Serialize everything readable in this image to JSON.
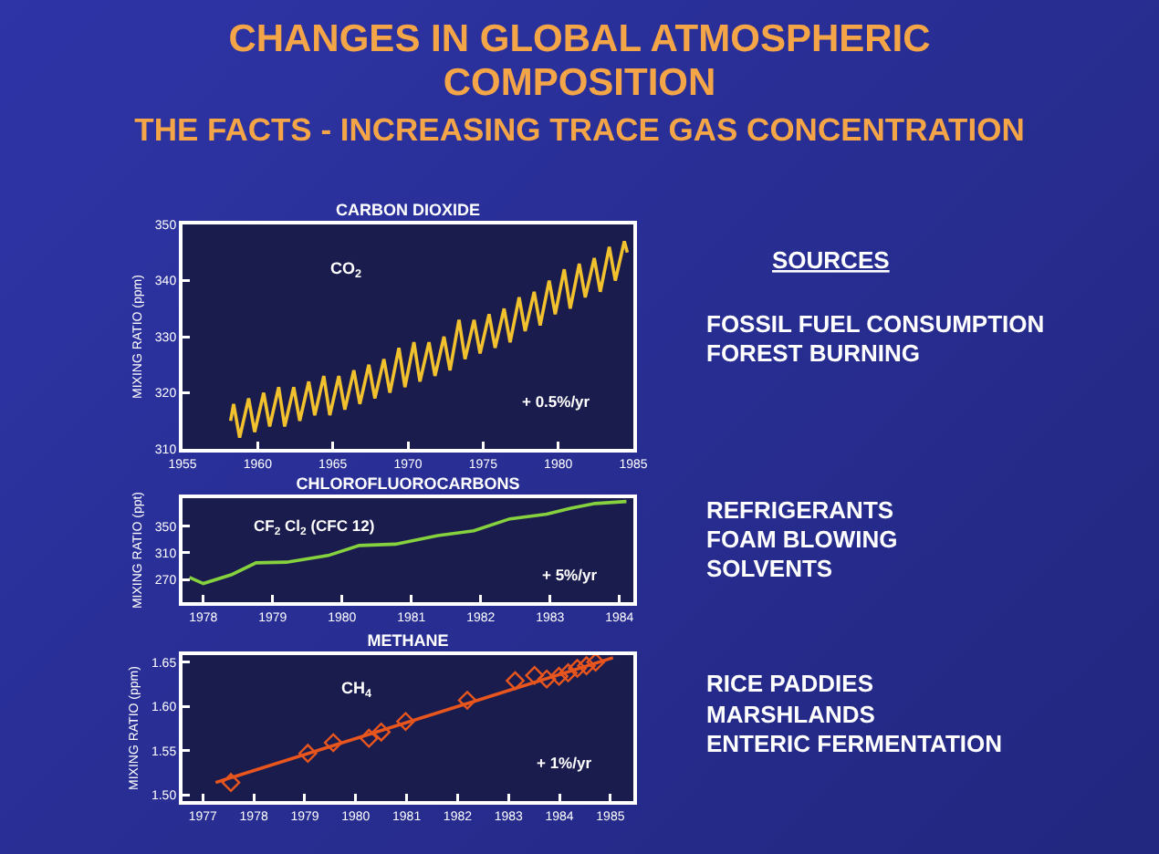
{
  "chart_data": [
    {
      "type": "other",
      "title": "CHANGES IN GLOBAL ATMOSPHERIC COMPOSITION",
      "subtitle": "THE FACTS - INCREASING TRACE GAS CONCENTRATION"
    },
    {
      "type": "line",
      "title": "CARBON DIOXIDE",
      "ylabel": "MIXING RATIO (ppm)",
      "xlim": [
        1955,
        1985
      ],
      "xticks": [
        1955,
        1960,
        1965,
        1970,
        1975,
        1980,
        1985
      ],
      "ylim": [
        310,
        350
      ],
      "yticks": [
        310,
        320,
        330,
        340,
        350
      ],
      "marker": "none",
      "annotations": [
        "CO$_{2}$",
        "+ 0.5%/yr",
        "SOURCES",
        "FOSSIL FUEL CONSUMPTION",
        "FOREST BURNING"
      ],
      "series": [
        {
          "color": "#f2c12e",
          "x": [
            1958.2,
            1958.4,
            1958.8,
            1959.4,
            1959.8,
            1960.4,
            1960.8,
            1961.4,
            1961.8,
            1962.4,
            1962.8,
            1963.4,
            1963.8,
            1964.4,
            1964.8,
            1965.4,
            1965.8,
            1966.4,
            1966.8,
            1967.4,
            1967.8,
            1968.4,
            1968.8,
            1969.4,
            1969.8,
            1970.4,
            1970.8,
            1971.4,
            1971.8,
            1972.4,
            1972.8,
            1973.4,
            1973.8,
            1974.4,
            1974.8,
            1975.4,
            1975.8,
            1976.4,
            1976.8,
            1977.4,
            1977.8,
            1978.4,
            1978.8,
            1979.4,
            1979.8,
            1980.4,
            1980.8,
            1981.4,
            1981.8,
            1982.4,
            1982.8,
            1983.4,
            1983.8,
            1984.4,
            1984.6
          ],
          "values": [
            315,
            318,
            312,
            319,
            313,
            320,
            314,
            321,
            314,
            321,
            315,
            322,
            316,
            323,
            316,
            323,
            317,
            324,
            318,
            325,
            319,
            326,
            320,
            328,
            321,
            329,
            322,
            329,
            323,
            330,
            324,
            333,
            326,
            333,
            327,
            334,
            328,
            335,
            329,
            337,
            331,
            338,
            332,
            340,
            334,
            342,
            335,
            343,
            337,
            344,
            338,
            346,
            340,
            347,
            345
          ]
        }
      ]
    },
    {
      "type": "line",
      "title": "CHLOROFLUOROCARBONS",
      "ylabel": "MIXING RATIO (ppt)",
      "xlim": [
        1977.7,
        1984.2
      ],
      "xticks": [
        1978,
        1979,
        1980,
        1981,
        1982,
        1983,
        1984
      ],
      "ylim": [
        236,
        392
      ],
      "yticks": [
        270,
        310,
        350
      ],
      "marker": "none",
      "annotations": [
        "CF$_{2}$ Cl$_{2}$ (CFC 12)",
        "+ 5%/yr",
        "REFRIGERANTS",
        "FOAM BLOWING",
        "SOLVENTS"
      ],
      "series": [
        {
          "color": "#86d23e",
          "x": [
            1977.8,
            1978.0,
            1978.4,
            1978.76,
            1979.2,
            1979.8,
            1980.25,
            1980.77,
            1981.38,
            1981.9,
            1982.42,
            1982.95,
            1983.3,
            1983.65,
            1984.1
          ],
          "values": [
            273,
            264,
            277,
            295,
            296,
            306,
            321,
            323,
            336,
            343,
            361,
            368,
            377,
            384,
            387
          ]
        }
      ]
    },
    {
      "type": "line",
      "title": "METHANE",
      "ylabel": "MIXING RATIO (ppm)",
      "xlim": [
        1976.6,
        1985.45
      ],
      "xticks": [
        1977,
        1978,
        1979,
        1980,
        1981,
        1982,
        1983,
        1984,
        1985
      ],
      "ylim": [
        1.493,
        1.658
      ],
      "yticks": [
        {
          "value": 1.5,
          "label": "1.50"
        },
        1.55,
        {
          "value": 1.6,
          "label": "1.60"
        },
        1.65
      ],
      "annotations": [
        "CH$_{4}$",
        "+ 1%/yr",
        "RICE PADDIES",
        "MARSHLANDS",
        "ENTERIC FERMENTATION"
      ],
      "series": [
        {
          "type": "line",
          "color": "#e8561e",
          "x": [
            1977.25,
            1985.05
          ],
          "values": [
            1.514,
            1.655
          ]
        },
        {
          "type": "scatter",
          "marker": "diamond",
          "color": "#e8561e",
          "x": [
            1977.55,
            1979.06,
            1979.56,
            1980.26,
            1980.5,
            1980.98,
            1982.19,
            1983.13,
            1983.51,
            1983.75,
            1983.99,
            1984.17,
            1984.35,
            1984.53,
            1984.71
          ],
          "values": [
            1.514,
            1.547,
            1.559,
            1.564,
            1.571,
            1.583,
            1.607,
            1.629,
            1.635,
            1.631,
            1.634,
            1.638,
            1.643,
            1.646,
            1.65
          ]
        }
      ]
    }
  ]
}
